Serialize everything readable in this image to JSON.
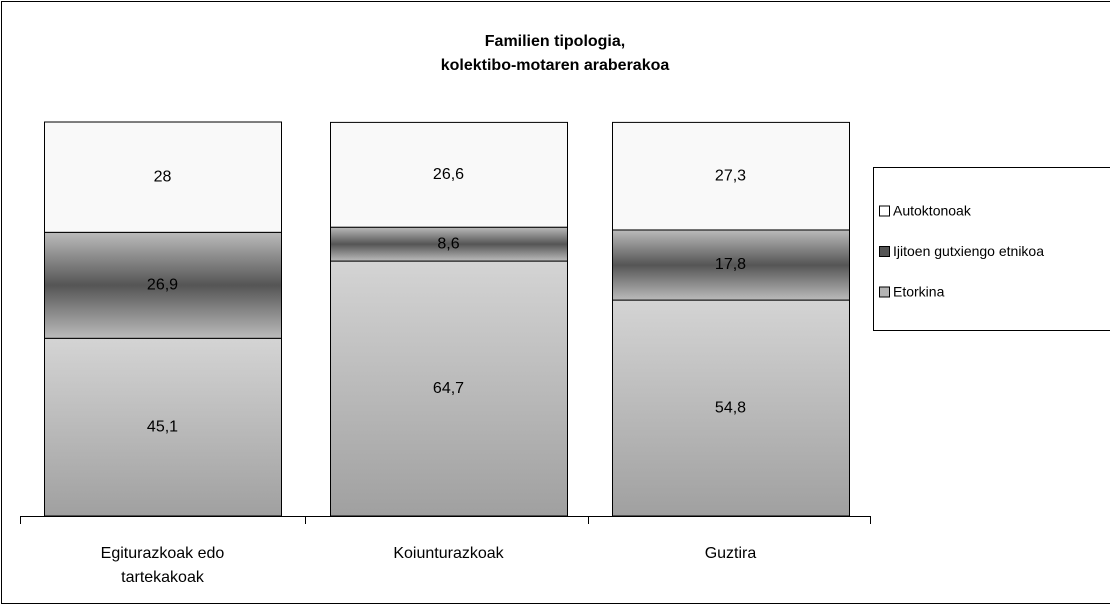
{
  "chart_data": {
    "type": "stacked_bar",
    "title": [
      "Familien tipologia,",
      "kolektibo-motaren araberakoa"
    ],
    "categories": [
      "Egiturazkoak edo tartekakoak",
      "Koiunturazkoak",
      "Guztira"
    ],
    "series": [
      {
        "name": "Etorkina",
        "color": "#b4b4b4",
        "values": [
          45.1,
          64.7,
          54.8
        ],
        "value_labels": [
          "45,1",
          "64,7",
          "54,8"
        ]
      },
      {
        "name": "Ijitoen gutxiengo etnikoa",
        "color": "#555555",
        "values": [
          26.9,
          8.6,
          17.8
        ],
        "value_labels": [
          "26,9",
          "8,6",
          "17,8"
        ]
      },
      {
        "name": "Autoktonoak",
        "color": "#f9f9f9",
        "values": [
          28,
          26.6,
          27.3
        ],
        "value_labels": [
          "28",
          "26,6",
          "27,3"
        ]
      }
    ],
    "ylim": [
      0,
      100
    ],
    "legend": "right"
  }
}
